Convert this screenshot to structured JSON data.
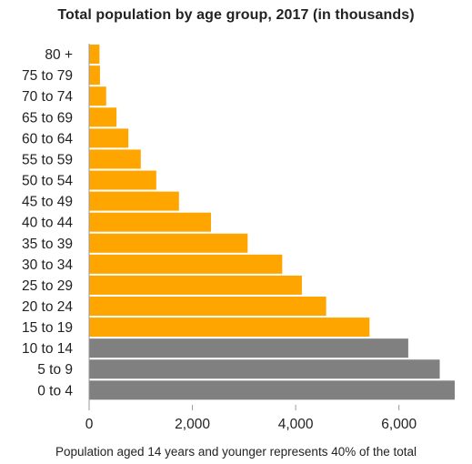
{
  "chart_data": {
    "type": "bar",
    "orientation": "horizontal",
    "title": "Total population by age group, 2017 (in thousands)",
    "xlabel": "",
    "ylabel": "",
    "categories": [
      "80 +",
      "75 to 79",
      "70 to 74",
      "65 to 69",
      "60 to 64",
      "55 to 59",
      "50 to 54",
      "45 to 49",
      "40 to 44",
      "35 to 39",
      "30 to 34",
      "25 to 29",
      "20 to 24",
      "15 to 19",
      "10 to 14",
      "5 to 9",
      "0 to 4"
    ],
    "values": [
      200,
      210,
      330,
      530,
      760,
      1000,
      1300,
      1740,
      2360,
      3070,
      3740,
      4120,
      4590,
      5430,
      6180,
      6790,
      7080
    ],
    "highlight": [
      false,
      false,
      false,
      false,
      false,
      false,
      false,
      false,
      false,
      false,
      false,
      false,
      false,
      false,
      true,
      true,
      true
    ],
    "xlim": [
      0,
      7200
    ],
    "xticks": [
      0,
      2000,
      4000,
      6000
    ],
    "xtick_labels": [
      "0",
      "2,000",
      "4,000",
      "6,000"
    ],
    "grid": false,
    "legend": "none",
    "colors": {
      "default": "#FFA500",
      "highlight": "#808080",
      "axis": "#999999"
    },
    "footnote": "Population aged 14 years and younger represents 40% of the total"
  }
}
